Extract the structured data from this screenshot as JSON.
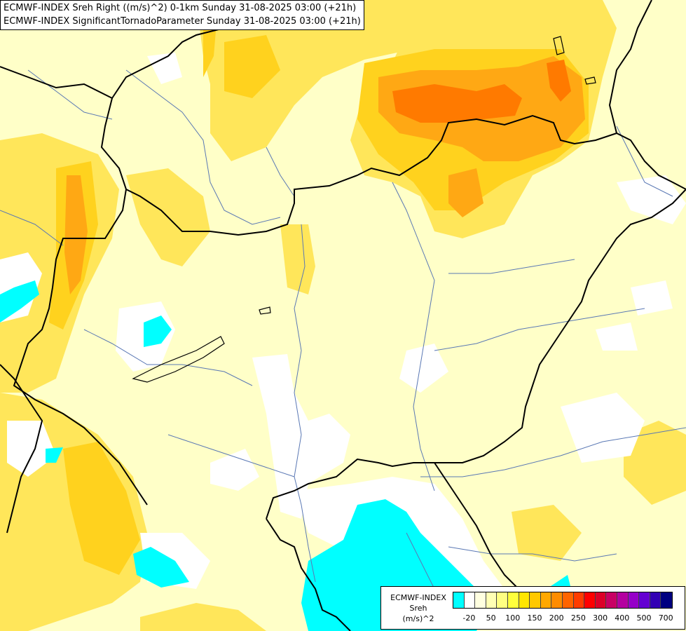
{
  "header": {
    "line1": "ECMWF-INDEX Sreh Right ((m/s)^2) 0-1km Sunday 31-08-2025 03:00 (+21h)",
    "line2": "ECMWF-INDEX SignificantTornadoParameter Sunday 31-08-2025 03:00 (+21h)"
  },
  "legend": {
    "line1": "ECMWF-INDEX",
    "line2": "Sreh",
    "line3": "(m/s)^2",
    "colors": [
      "#00ffff",
      "#ffffff",
      "#ffffe0",
      "#ffffb4",
      "#ffff82",
      "#ffff3c",
      "#ffe600",
      "#ffc800",
      "#ffa800",
      "#ff8c00",
      "#ff6400",
      "#ff3c00",
      "#ff0000",
      "#dc0028",
      "#c80064",
      "#b400a0",
      "#9600c8",
      "#6400d2",
      "#3200b4",
      "#000080"
    ],
    "ticks": [
      "-20",
      "50",
      "100",
      "150",
      "200",
      "250",
      "300",
      "400",
      "500",
      "700"
    ]
  },
  "map": {
    "shading_colors": {
      "light": "#ffffc8",
      "yellow": "#ffe65a",
      "deep_yellow": "#ffd21e",
      "orange": "#ffa814",
      "deep_orange": "#ff7a00",
      "white": "#ffffff",
      "cyan": "#00ffff"
    }
  }
}
